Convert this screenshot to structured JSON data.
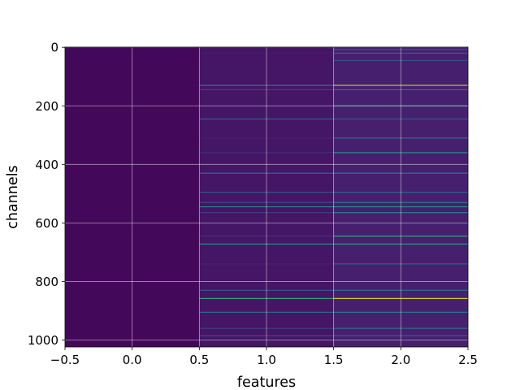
{
  "chart_data": {
    "type": "heatmap",
    "title": "",
    "xlabel": "features",
    "ylabel": "channels",
    "xlim": [
      -0.5,
      2.5
    ],
    "ylim": [
      1023.5,
      -0.5
    ],
    "y_inverted": true,
    "grid": true,
    "colormap": "viridis",
    "color_range": [
      0,
      1
    ],
    "columns": [
      0,
      1,
      2
    ],
    "n_channels": 1024,
    "x_ticks": [
      -0.5,
      0.0,
      0.5,
      1.0,
      1.5,
      2.0,
      2.5
    ],
    "x_tick_labels": [
      "−0.5",
      "0.0",
      "0.5",
      "1.0",
      "1.5",
      "2.0",
      "2.5"
    ],
    "y_ticks": [
      0,
      200,
      400,
      600,
      800,
      1000
    ],
    "y_tick_labels": [
      "0",
      "200",
      "400",
      "600",
      "800",
      "1000"
    ],
    "column_base_values": [
      0.02,
      0.06,
      0.09
    ],
    "highlight_channels": [
      {
        "channel": 8,
        "values": [
          0.02,
          0.05,
          0.3
        ]
      },
      {
        "channel": 20,
        "values": [
          0.02,
          0.08,
          0.35
        ]
      },
      {
        "channel": 45,
        "values": [
          0.02,
          0.06,
          0.25
        ]
      },
      {
        "channel": 130,
        "values": [
          0.03,
          0.45,
          0.9
        ]
      },
      {
        "channel": 145,
        "values": [
          0.02,
          0.2,
          0.4
        ]
      },
      {
        "channel": 200,
        "values": [
          0.02,
          0.1,
          0.55
        ]
      },
      {
        "channel": 245,
        "values": [
          0.02,
          0.35,
          0.3
        ]
      },
      {
        "channel": 310,
        "values": [
          0.02,
          0.1,
          0.4
        ]
      },
      {
        "channel": 360,
        "values": [
          0.02,
          0.15,
          0.55
        ]
      },
      {
        "channel": 430,
        "values": [
          0.02,
          0.4,
          0.45
        ]
      },
      {
        "channel": 495,
        "values": [
          0.02,
          0.3,
          0.35
        ]
      },
      {
        "channel": 530,
        "values": [
          0.02,
          0.25,
          0.45
        ]
      },
      {
        "channel": 545,
        "values": [
          0.03,
          0.5,
          0.55
        ]
      },
      {
        "channel": 565,
        "values": [
          0.02,
          0.2,
          0.5
        ]
      },
      {
        "channel": 645,
        "values": [
          0.02,
          0.15,
          0.65
        ]
      },
      {
        "channel": 672,
        "values": [
          0.03,
          0.55,
          0.6
        ]
      },
      {
        "channel": 740,
        "values": [
          0.02,
          0.1,
          0.35
        ]
      },
      {
        "channel": 830,
        "values": [
          0.02,
          0.3,
          0.4
        ]
      },
      {
        "channel": 858,
        "values": [
          0.03,
          0.65,
          0.95
        ]
      },
      {
        "channel": 905,
        "values": [
          0.02,
          0.4,
          0.45
        ]
      },
      {
        "channel": 960,
        "values": [
          0.02,
          0.2,
          0.4
        ]
      },
      {
        "channel": 985,
        "values": [
          0.02,
          0.25,
          0.35
        ]
      }
    ]
  }
}
